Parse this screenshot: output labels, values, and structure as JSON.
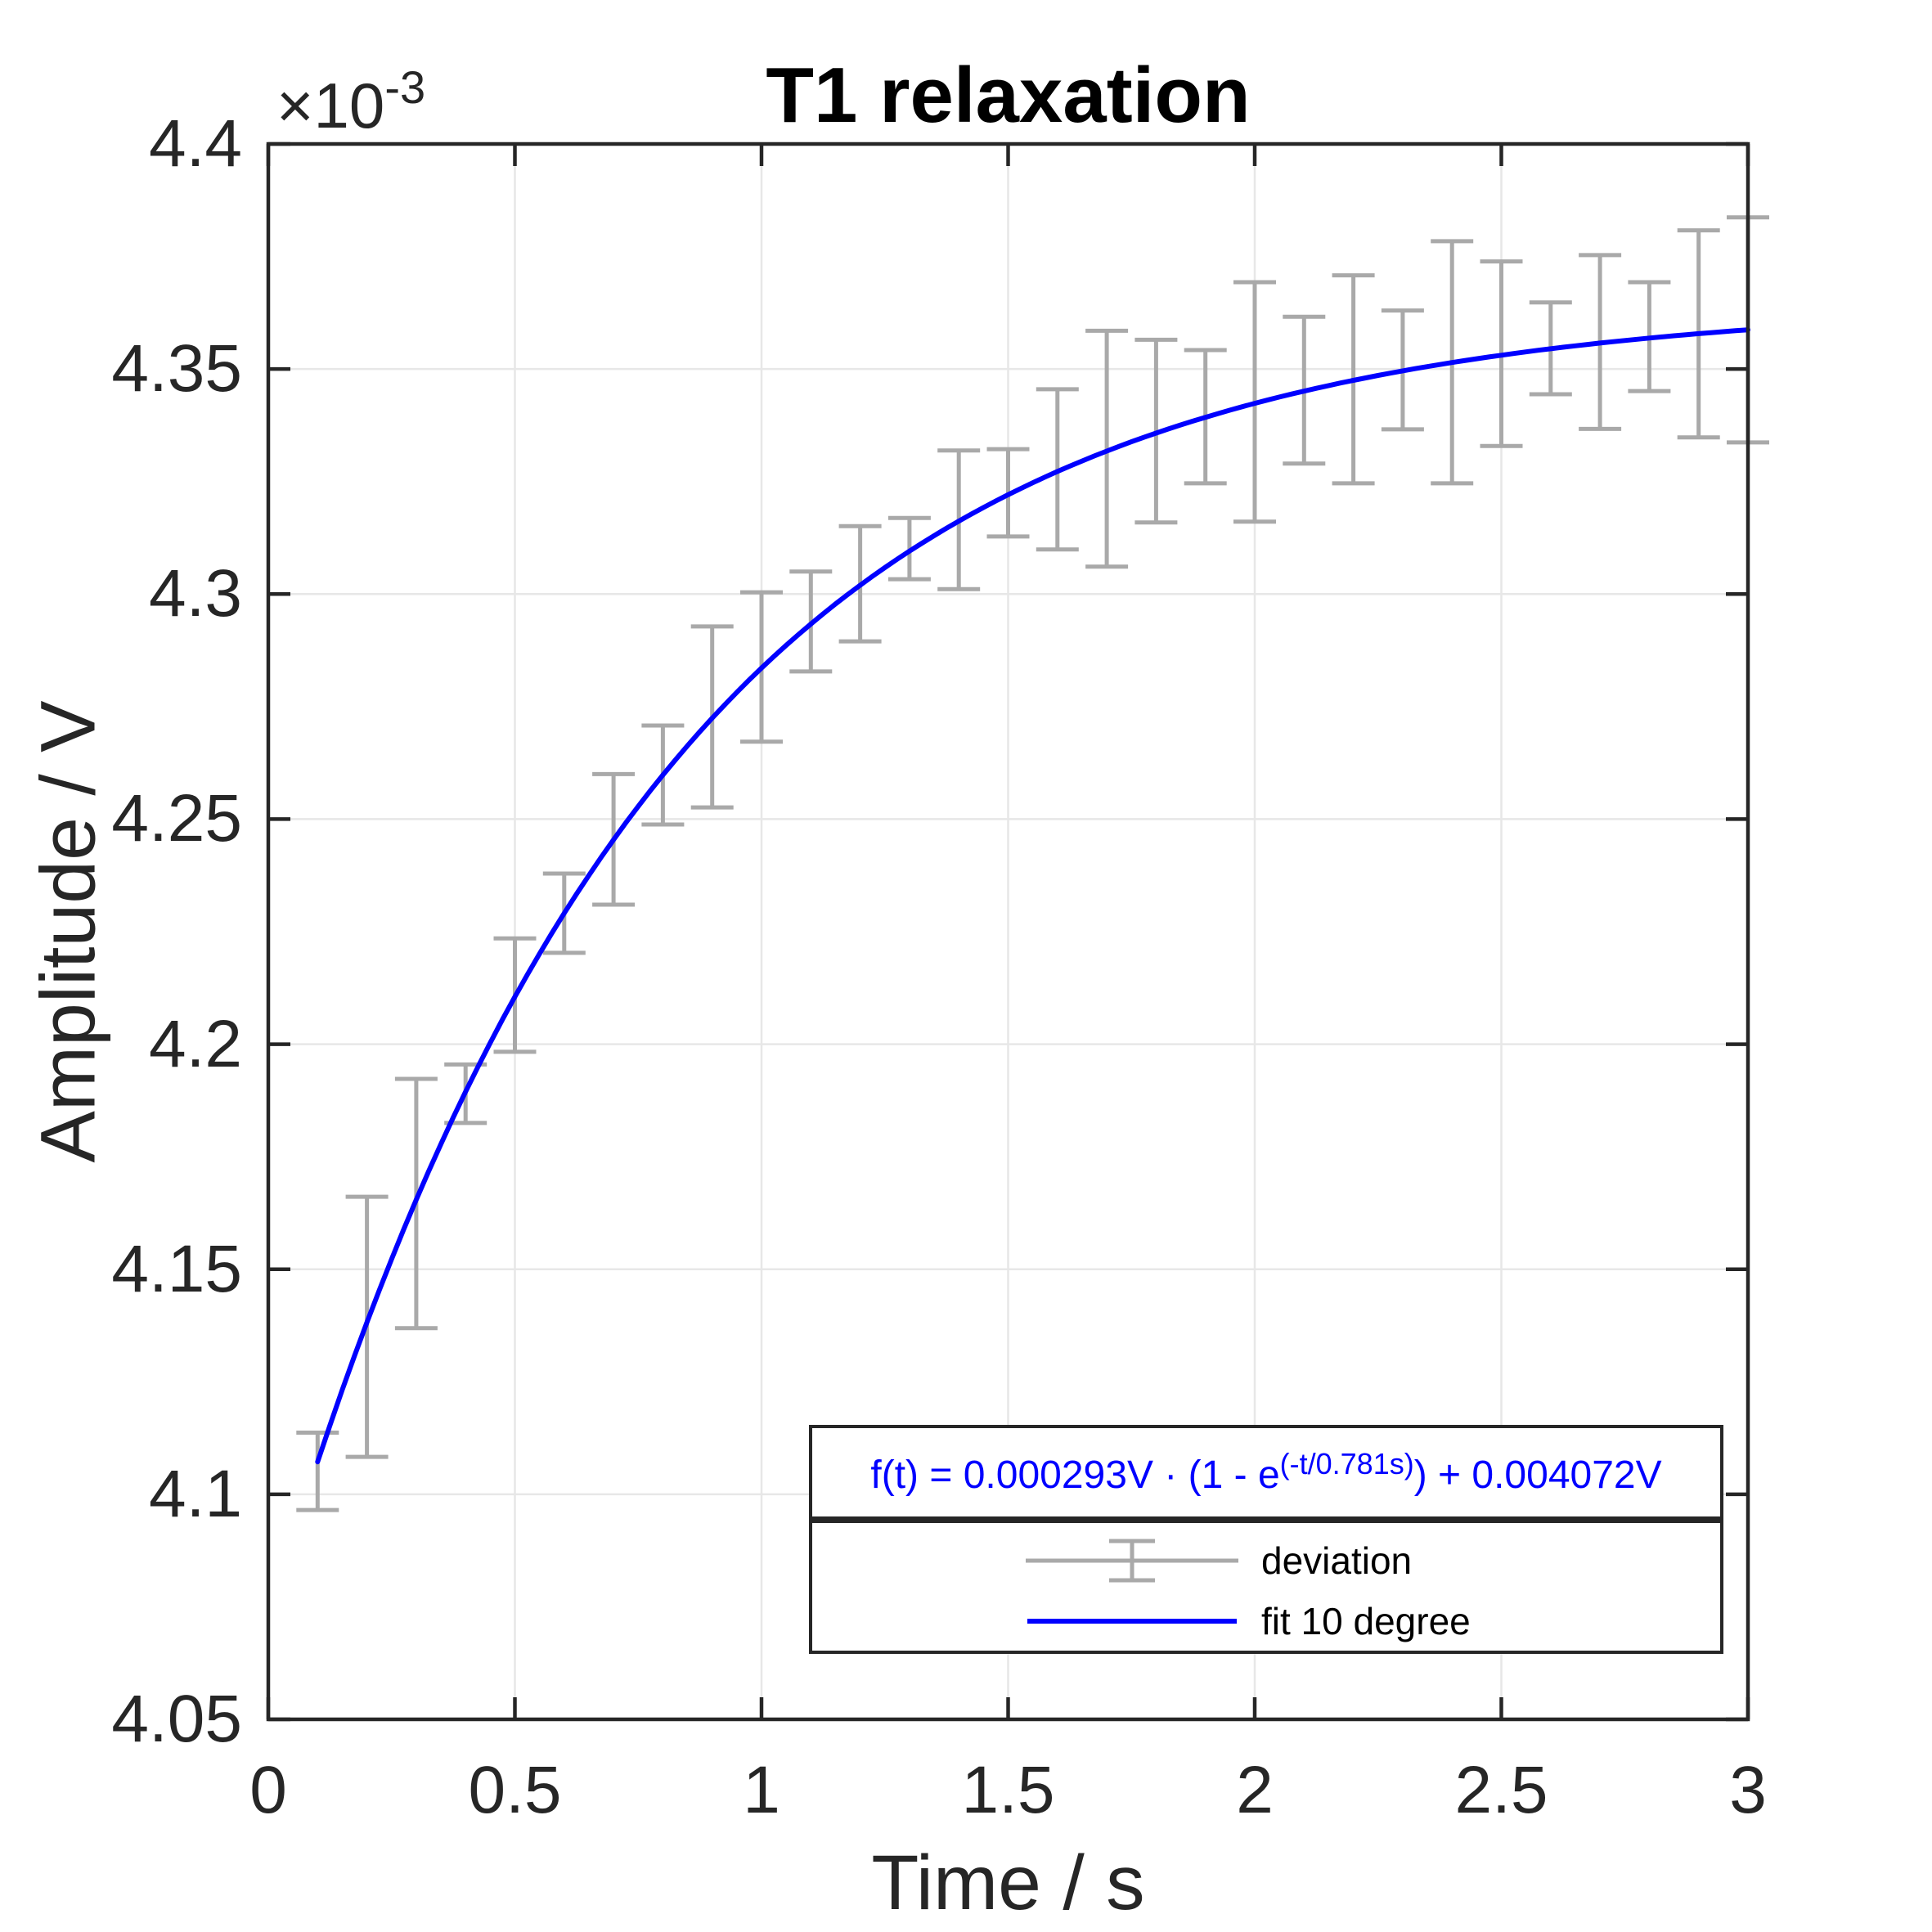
{
  "chart_data": {
    "type": "errorbar+line",
    "title": "T1 relaxation",
    "xlabel": "Time / s",
    "ylabel": "Amplitude / V",
    "y_exponent_prefix": "×10",
    "y_exponent_sup": "-3",
    "y_unit_scale": "1e-3 V",
    "xlim": [
      0,
      3
    ],
    "ylim": [
      4.05,
      4.4
    ],
    "xtick_values": [
      0,
      0.5,
      1,
      1.5,
      2,
      2.5,
      3
    ],
    "xtick_labels": [
      "0",
      "0.5",
      "1",
      "1.5",
      "2",
      "2.5",
      "3"
    ],
    "ytick_values": [
      4.05,
      4.1,
      4.15,
      4.2,
      4.25,
      4.3,
      4.35,
      4.4
    ],
    "ytick_labels": [
      "4.05",
      "4.1",
      "4.15",
      "4.2",
      "4.25",
      "4.3",
      "4.35",
      "4.4"
    ],
    "grid": true,
    "series": [
      {
        "name": "deviation",
        "type": "errorbar",
        "color": "#a9a9a9",
        "x": [
          0.1,
          0.2,
          0.3,
          0.4,
          0.5,
          0.6,
          0.7,
          0.8,
          0.9,
          1.0,
          1.1,
          1.2,
          1.3,
          1.4,
          1.5,
          1.6,
          1.7,
          1.8,
          1.9,
          2.0,
          2.1,
          2.2,
          2.3,
          2.4,
          2.5,
          2.6,
          2.7,
          2.8,
          2.9,
          3.0
        ],
        "y": [
          4.1051,
          4.1372,
          4.1646,
          4.189,
          4.2109,
          4.2291,
          4.2455,
          4.2598,
          4.2727,
          4.2838,
          4.2939,
          4.3023,
          4.3101,
          4.3165,
          4.3225,
          4.3277,
          4.3323,
          4.3362,
          4.3394,
          4.3427,
          4.3453,
          4.3477,
          4.3498,
          4.3515,
          4.3534,
          4.3546,
          4.356,
          4.3572,
          4.3578,
          4.3587
        ],
        "yerr": [
          0.0086,
          0.0289,
          0.0277,
          0.0065,
          0.0126,
          0.0088,
          0.0145,
          0.011,
          0.0201,
          0.0166,
          0.0111,
          0.0128,
          0.0068,
          0.0154,
          0.0097,
          0.0178,
          0.0262,
          0.0203,
          0.0148,
          0.0266,
          0.0163,
          0.0231,
          0.0132,
          0.0269,
          0.0205,
          0.0102,
          0.0193,
          0.0121,
          0.023,
          0.025
        ]
      },
      {
        "name": "fit 10 degree",
        "type": "line",
        "color": "#0000ff",
        "fit": {
          "model": "offset + A*(1-exp(-t/tau))",
          "A": 0.293,
          "tau": 0.781,
          "offset": 4.072,
          "domain": [
            0.1,
            3.0
          ]
        }
      }
    ],
    "annotation_formula": {
      "prefix": "f(t) = 0.000293V · (1 - e",
      "sup": "(-t/0.781s)",
      "suffix": ") + 0.004072V",
      "color": "#0000ff"
    },
    "legend": {
      "position": "southeast",
      "entries": [
        "deviation",
        "fit 10 degree"
      ]
    },
    "colors": {
      "fit_line": "#0000ff",
      "error_bars": "#a9a9a9",
      "grid": "#e7e7e7",
      "axes": "#262626",
      "title": "#000000",
      "formula_text": "#0000ff"
    }
  }
}
